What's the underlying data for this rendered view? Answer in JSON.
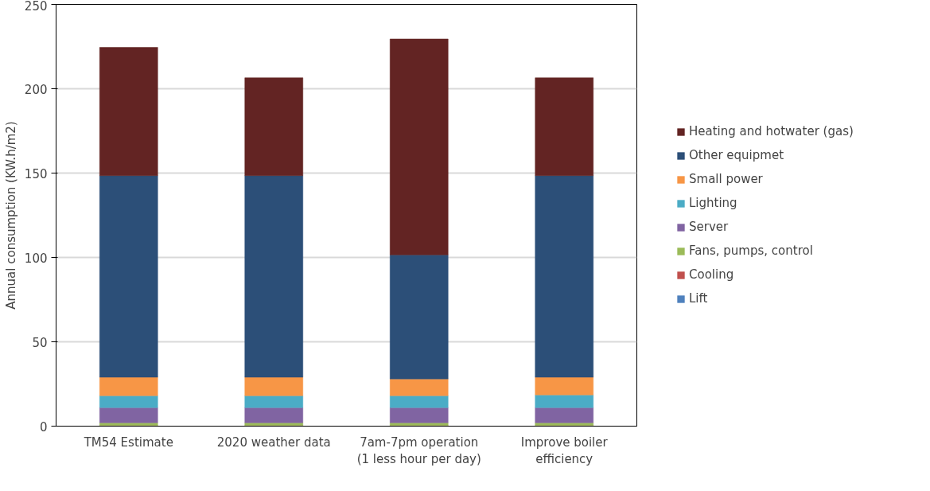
{
  "chart_data": {
    "type": "bar",
    "stacked": true,
    "ylabel": "Annual consumption (KW.h/m2)",
    "categories": [
      "TM54 Estimate",
      "2020 weather data",
      "7am-7pm operation\n(1 less hour per day)",
      "Improve boiler\nefficiency"
    ],
    "series": [
      {
        "name": "Lift",
        "color": "#4f81bd",
        "values": [
          0,
          0,
          0,
          0
        ]
      },
      {
        "name": "Cooling",
        "color": "#c0504d",
        "values": [
          0.3,
          0.3,
          0.3,
          0.3
        ]
      },
      {
        "name": "Fans, pumps, control",
        "color": "#9bbb59",
        "values": [
          1.7,
          1.7,
          1.7,
          1.7
        ]
      },
      {
        "name": "Server",
        "color": "#8064a2",
        "values": [
          9,
          9,
          9,
          9
        ]
      },
      {
        "name": "Lighting",
        "color": "#4bacc6",
        "values": [
          7,
          7,
          7,
          7.5
        ]
      },
      {
        "name": "Small power",
        "color": "#f79646",
        "values": [
          11,
          11,
          10,
          10.5
        ]
      },
      {
        "name": "Other equipmet",
        "color": "#2c4f78",
        "values": [
          119.5,
          119.5,
          73.5,
          119.5
        ]
      },
      {
        "name": "Heating and hotwater (gas)",
        "color": "#632423",
        "values": [
          76,
          58,
          128,
          58
        ]
      }
    ],
    "ylim": [
      0,
      250
    ],
    "yticks": [
      0,
      50,
      100,
      150,
      200,
      250
    ],
    "grid": "y",
    "legend": "right"
  }
}
